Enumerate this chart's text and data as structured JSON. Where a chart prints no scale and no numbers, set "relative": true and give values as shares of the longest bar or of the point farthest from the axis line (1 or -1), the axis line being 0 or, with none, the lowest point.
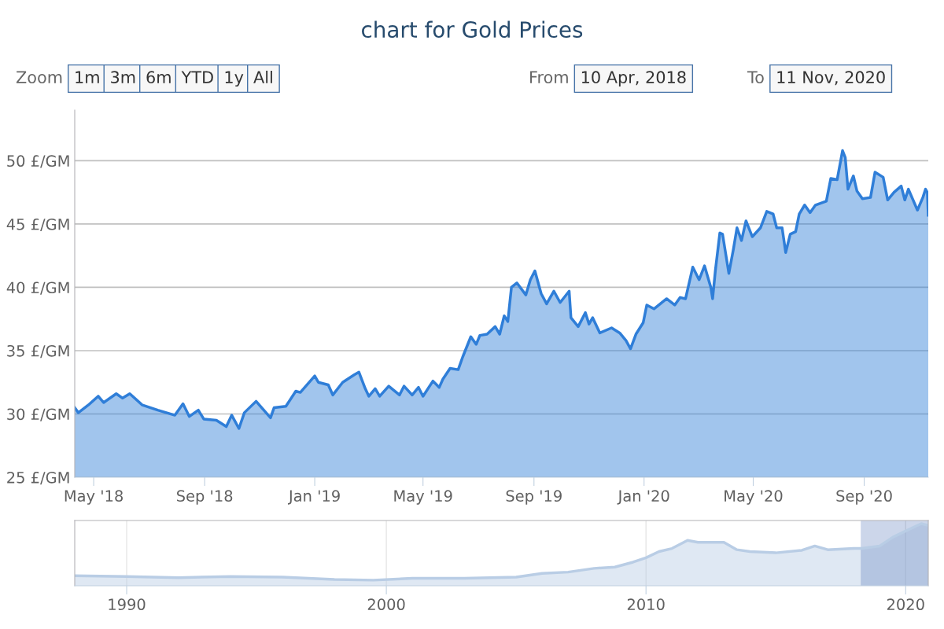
{
  "chart_data": [
    {
      "type": "area",
      "title": "chart for Gold Prices",
      "annotations": [
        "Zoom",
        "1m",
        "3m",
        "6m",
        "YTD",
        "1y",
        "All",
        "From",
        "10 Apr, 2018",
        "To",
        "11 Nov, 2020"
      ],
      "x": [
        "2018-04-10",
        "2018-04-14",
        "2018-04-25",
        "2018-05-06",
        "2018-05-12",
        "2018-05-26",
        "2018-06-02",
        "2018-06-10",
        "2018-06-24",
        "2018-07-11",
        "2018-07-30",
        "2018-08-08",
        "2018-08-15",
        "2018-08-25",
        "2018-08-31",
        "2018-09-14",
        "2018-09-25",
        "2018-10-01",
        "2018-10-09",
        "2018-10-15",
        "2018-10-28",
        "2018-11-13",
        "2018-11-17",
        "2018-11-30",
        "2018-12-11",
        "2018-12-16",
        "2019-01-01",
        "2019-01-05",
        "2019-01-16",
        "2019-01-21",
        "2019-02-01",
        "2019-02-14",
        "2019-02-19",
        "2019-02-26",
        "2019-03-02",
        "2019-03-09",
        "2019-03-14",
        "2019-03-24",
        "2019-04-05",
        "2019-04-10",
        "2019-04-19",
        "2019-04-26",
        "2019-05-01",
        "2019-05-12",
        "2019-05-19",
        "2019-05-23",
        "2019-05-31",
        "2019-06-09",
        "2019-06-14",
        "2019-06-23",
        "2019-06-29",
        "2019-07-03",
        "2019-07-11",
        "2019-07-20",
        "2019-07-25",
        "2019-07-30",
        "2019-08-03",
        "2019-08-07",
        "2019-08-13",
        "2019-08-23",
        "2019-08-28",
        "2019-09-02",
        "2019-09-09",
        "2019-09-15",
        "2019-09-23",
        "2019-09-30",
        "2019-10-10",
        "2019-10-12",
        "2019-10-20",
        "2019-10-28",
        "2019-11-01",
        "2019-11-05",
        "2019-11-13",
        "2019-11-26",
        "2019-12-05",
        "2019-12-12",
        "2019-12-17",
        "2019-12-23",
        "2019-12-31",
        "2020-01-04",
        "2020-01-12",
        "2020-01-19",
        "2020-01-26",
        "2020-02-04",
        "2020-02-10",
        "2020-02-16",
        "2020-02-24",
        "2020-03-02",
        "2020-03-08",
        "2020-03-15",
        "2020-03-17",
        "2020-03-20",
        "2020-03-25",
        "2020-03-28",
        "2020-04-04",
        "2020-04-09",
        "2020-04-13",
        "2020-04-18",
        "2020-04-23",
        "2020-04-30",
        "2020-05-09",
        "2020-05-16",
        "2020-05-23",
        "2020-05-27",
        "2020-06-02",
        "2020-06-06",
        "2020-06-11",
        "2020-06-17",
        "2020-06-21",
        "2020-06-27",
        "2020-07-03",
        "2020-07-09",
        "2020-07-21",
        "2020-07-26",
        "2020-08-02",
        "2020-08-08",
        "2020-08-11",
        "2020-08-14",
        "2020-08-20",
        "2020-08-24",
        "2020-08-30",
        "2020-09-08",
        "2020-09-13",
        "2020-09-22",
        "2020-09-27",
        "2020-10-04",
        "2020-10-12",
        "2020-10-16",
        "2020-10-20",
        "2020-10-30",
        "2020-11-05",
        "2020-11-08",
        "2020-11-10",
        "2020-11-11"
      ],
      "series": [
        {
          "color": "#2f7ed8",
          "values": [
            30.5,
            30.1,
            30.7,
            31.4,
            30.9,
            31.6,
            31.25,
            31.6,
            30.7,
            30.3,
            29.9,
            30.8,
            29.8,
            30.3,
            29.6,
            29.5,
            29.0,
            29.9,
            28.85,
            30.1,
            31.0,
            29.7,
            30.5,
            30.6,
            31.8,
            31.7,
            33.0,
            32.5,
            32.3,
            31.5,
            32.5,
            33.1,
            33.3,
            32.0,
            31.4,
            32.0,
            31.4,
            32.2,
            31.5,
            32.2,
            31.5,
            32.1,
            31.4,
            32.6,
            32.1,
            32.75,
            33.6,
            33.5,
            34.5,
            36.1,
            35.5,
            36.2,
            36.3,
            36.9,
            36.3,
            37.75,
            37.3,
            40.0,
            40.35,
            39.4,
            40.6,
            41.3,
            39.5,
            38.7,
            39.7,
            38.8,
            39.7,
            37.6,
            36.9,
            38.0,
            37.1,
            37.6,
            36.4,
            36.8,
            36.4,
            35.8,
            35.15,
            36.3,
            37.2,
            38.6,
            38.3,
            38.7,
            39.1,
            38.6,
            39.2,
            39.1,
            41.6,
            40.6,
            41.7,
            40.0,
            39.1,
            41.3,
            44.3,
            44.2,
            41.1,
            43.0,
            44.7,
            43.7,
            45.25,
            44.0,
            44.7,
            46.0,
            45.8,
            44.7,
            44.7,
            42.75,
            44.2,
            44.4,
            45.8,
            46.5,
            45.9,
            46.5,
            46.8,
            48.6,
            48.5,
            50.8,
            50.25,
            47.75,
            48.8,
            47.6,
            47.0,
            47.1,
            49.1,
            48.7,
            46.9,
            47.5,
            48.0,
            46.9,
            47.75,
            46.1,
            47.1,
            47.75,
            47.5,
            45.7
          ]
        }
      ],
      "xlim": [
        "2018-04-10",
        "2020-11-11"
      ],
      "xticks": [
        {
          "value": "2018-05-01",
          "label": "May '18"
        },
        {
          "value": "2018-09-01",
          "label": "Sep '18"
        },
        {
          "value": "2019-01-01",
          "label": "Jan '19"
        },
        {
          "value": "2019-05-01",
          "label": "May '19"
        },
        {
          "value": "2019-09-01",
          "label": "Sep '19"
        },
        {
          "value": "2020-01-01",
          "label": "Jan '20"
        },
        {
          "value": "2020-05-01",
          "label": "May '20"
        },
        {
          "value": "2020-09-01",
          "label": "Sep '20"
        }
      ],
      "ylim": [
        25,
        54
      ],
      "yticks": [
        {
          "value": 25,
          "label": "25 £/GM"
        },
        {
          "value": 30,
          "label": "30 £/GM"
        },
        {
          "value": 35,
          "label": "35 £/GM"
        },
        {
          "value": 40,
          "label": "40 £/GM"
        },
        {
          "value": 45,
          "label": "45 £/GM"
        },
        {
          "value": 50,
          "label": "50 £/GM"
        }
      ],
      "grid": "y",
      "legend": false
    },
    {
      "type": "area",
      "relative": true,
      "x": [
        1988,
        1990,
        1992,
        1994,
        1996,
        1998,
        1999.5,
        2001,
        2003,
        2005,
        2006,
        2007,
        2008,
        2008.8,
        2009.5,
        2010,
        2010.5,
        2011,
        2011.6,
        2012,
        2013,
        2013.5,
        2014,
        2015,
        2016,
        2016.5,
        2017,
        2018,
        2018.3,
        2019,
        2019.5,
        2020,
        2020.6,
        2020.87
      ],
      "series": [
        {
          "color": "#b9cde5",
          "values": [
            0.16,
            0.15,
            0.13,
            0.15,
            0.14,
            0.1,
            0.09,
            0.12,
            0.12,
            0.14,
            0.2,
            0.22,
            0.28,
            0.3,
            0.38,
            0.45,
            0.55,
            0.6,
            0.73,
            0.7,
            0.7,
            0.58,
            0.55,
            0.53,
            0.57,
            0.64,
            0.58,
            0.6,
            0.6,
            0.64,
            0.78,
            0.88,
            1.0,
            0.97
          ]
        }
      ],
      "xlim": [
        1988,
        2020.87
      ],
      "xticks": [
        1990,
        2000,
        2010,
        2020
      ],
      "bands": [
        {
          "axis": "x",
          "from": 2018.27,
          "to": 2020.87,
          "color": "#335cad"
        }
      ],
      "grid": "x",
      "tick_labels": "x",
      "legend": false
    }
  ]
}
